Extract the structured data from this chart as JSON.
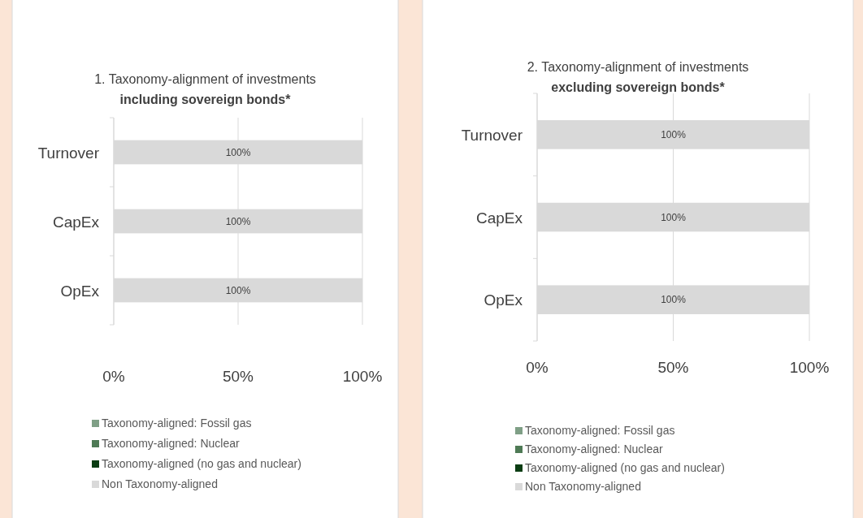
{
  "chart_data": [
    {
      "type": "bar",
      "orientation": "horizontal",
      "stacked": true,
      "title": "1. Taxonomy-alignment of investments",
      "subtitle": "including sovereign bonds*",
      "categories": [
        "Turnover",
        "CapEx",
        "OpEx"
      ],
      "series": [
        {
          "name": "Taxonomy-aligned: Fossil gas",
          "color": "#7f9f86",
          "values": [
            0,
            0,
            0
          ]
        },
        {
          "name": "Taxonomy-aligned: Nuclear",
          "color": "#4e7a55",
          "values": [
            0,
            0,
            0
          ]
        },
        {
          "name": "Taxonomy-aligned (no gas and nuclear)",
          "color": "#0b3d13",
          "values": [
            0,
            0,
            0
          ]
        },
        {
          "name": "Non Taxonomy-aligned",
          "color": "#d9d9d9",
          "values": [
            100,
            100,
            100
          ],
          "value_labels": [
            "100%",
            "100%",
            "100%"
          ]
        }
      ],
      "xlim": [
        0,
        100
      ],
      "xticks": [
        {
          "value": 0,
          "label": "0%"
        },
        {
          "value": 50,
          "label": "50%"
        },
        {
          "value": 100,
          "label": "100%"
        }
      ],
      "grid": "x",
      "legend": "bottom"
    },
    {
      "type": "bar",
      "orientation": "horizontal",
      "stacked": true,
      "title": "2. Taxonomy-alignment of investments",
      "subtitle": "excluding sovereign bonds*",
      "categories": [
        "Turnover",
        "CapEx",
        "OpEx"
      ],
      "series": [
        {
          "name": "Taxonomy-aligned: Fossil gas",
          "color": "#7f9f86",
          "values": [
            0,
            0,
            0
          ]
        },
        {
          "name": "Taxonomy-aligned: Nuclear",
          "color": "#4e7a55",
          "values": [
            0,
            0,
            0
          ]
        },
        {
          "name": "Taxonomy-aligned (no gas and nuclear)",
          "color": "#0b3d13",
          "values": [
            0,
            0,
            0
          ]
        },
        {
          "name": "Non Taxonomy-aligned",
          "color": "#d9d9d9",
          "values": [
            100,
            100,
            100
          ],
          "value_labels": [
            "100%",
            "100%",
            "100%"
          ]
        }
      ],
      "xlim": [
        0,
        100
      ],
      "xticks": [
        {
          "value": 0,
          "label": "0%"
        },
        {
          "value": 50,
          "label": "50%"
        },
        {
          "value": 100,
          "label": "100%"
        }
      ],
      "grid": "x",
      "legend": "bottom"
    }
  ]
}
